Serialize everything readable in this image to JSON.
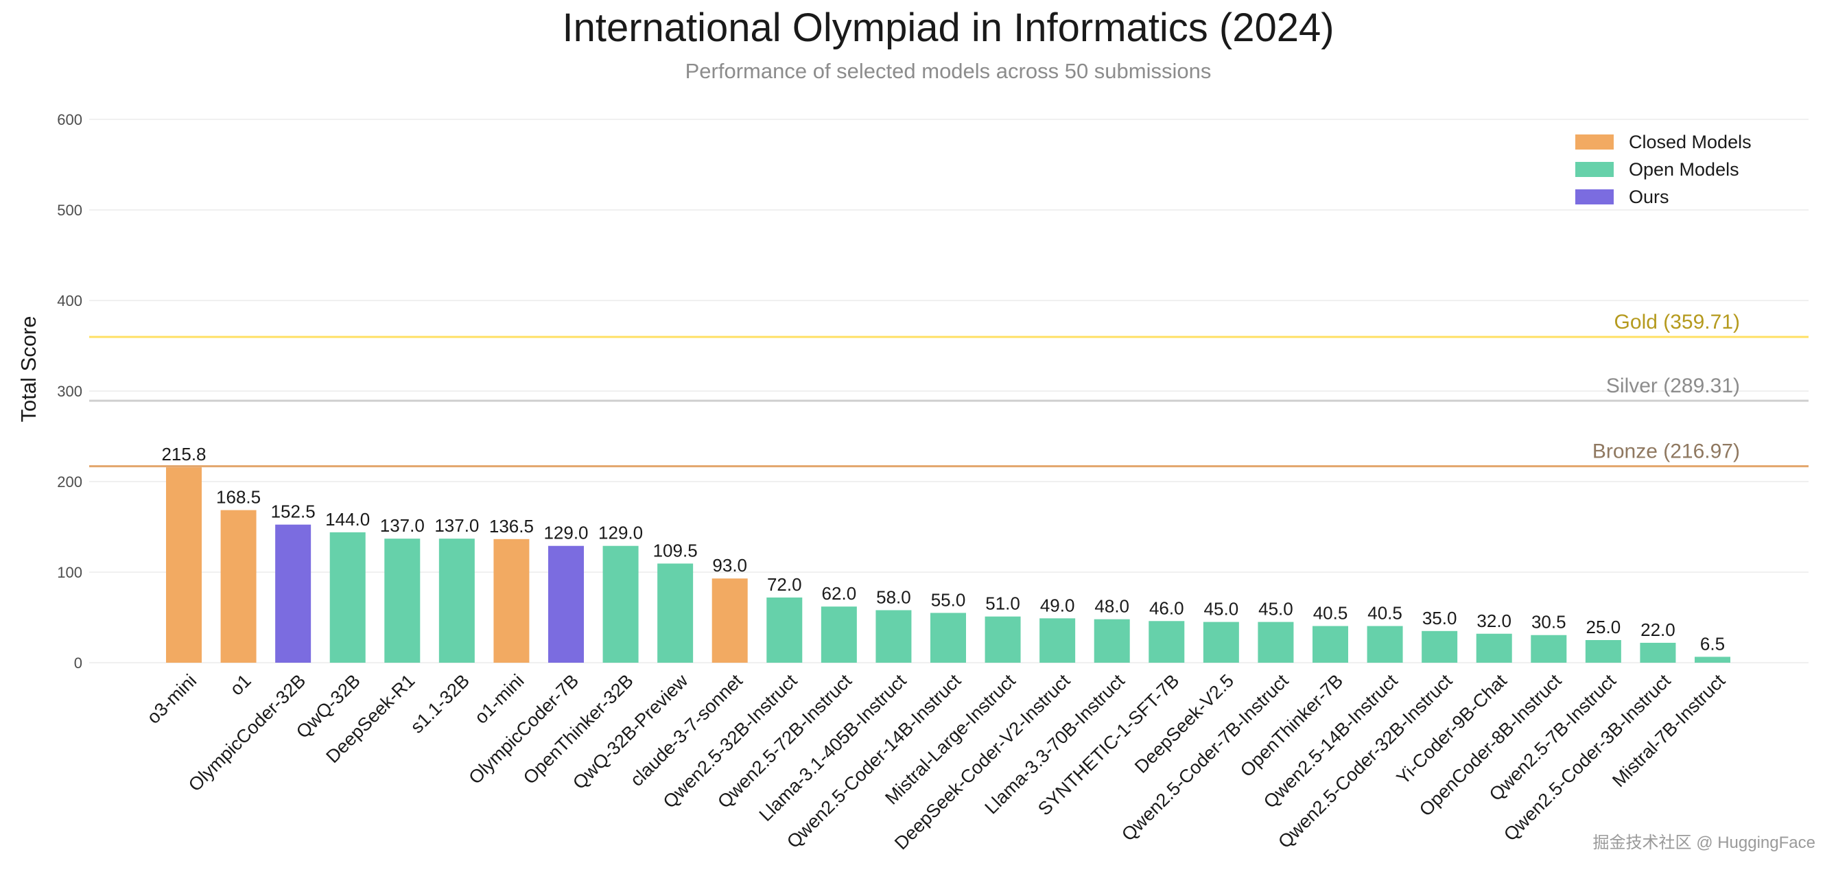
{
  "chart_data": {
    "type": "bar",
    "title": "International Olympiad in Informatics (2024)",
    "subtitle": "Performance of selected models across 50 submissions",
    "xlabel": "",
    "ylabel": "Total Score",
    "ylim": [
      0,
      600
    ],
    "yticks": [
      0,
      100,
      200,
      300,
      400,
      500,
      600
    ],
    "grid": true,
    "legend_position": "top-right",
    "legend": [
      {
        "name": "Closed Models",
        "group": "closed"
      },
      {
        "name": "Open Models",
        "group": "open"
      },
      {
        "name": "Ours",
        "group": "ours"
      }
    ],
    "colors": {
      "closed": "#F2AA62",
      "open": "#66D1AA",
      "ours": "#7B6CE0"
    },
    "categories": [
      "o3-mini",
      "o1",
      "OlympicCoder-32B",
      "QwQ-32B",
      "DeepSeek-R1",
      "s1.1-32B",
      "o1-mini",
      "OlympicCoder-7B",
      "OpenThinker-32B",
      "QwQ-32B-Preview",
      "claude-3-7-sonnet",
      "Qwen2.5-32B-Instruct",
      "Qwen2.5-72B-Instruct",
      "Llama-3.1-405B-Instruct",
      "Qwen2.5-Coder-14B-Instruct",
      "Mistral-Large-Instruct",
      "DeepSeek-Coder-V2-Instruct",
      "Llama-3.3-70B-Instruct",
      "SYNTHETIC-1-SFT-7B",
      "DeepSeek-V2.5",
      "Qwen2.5-Coder-7B-Instruct",
      "OpenThinker-7B",
      "Qwen2.5-14B-Instruct",
      "Qwen2.5-Coder-32B-Instruct",
      "Yi-Coder-9B-Chat",
      "OpenCoder-8B-Instruct",
      "Qwen2.5-7B-Instruct",
      "Qwen2.5-Coder-3B-Instruct",
      "Mistral-7B-Instruct"
    ],
    "values": [
      215.8,
      168.5,
      152.5,
      144.0,
      137.0,
      137.0,
      136.5,
      129.0,
      129.0,
      109.5,
      93.0,
      72.0,
      62.0,
      58.0,
      55.0,
      51.0,
      49.0,
      48.0,
      46.0,
      45.0,
      45.0,
      40.5,
      40.5,
      35.0,
      32.0,
      30.5,
      25.0,
      22.0,
      6.5
    ],
    "value_labels": [
      "215.8",
      "168.5",
      "152.5",
      "144.0",
      "137.0",
      "137.0",
      "136.5",
      "129.0",
      "129.0",
      "109.5",
      "93.0",
      "72.0",
      "62.0",
      "58.0",
      "55.0",
      "51.0",
      "49.0",
      "48.0",
      "46.0",
      "45.0",
      "45.0",
      "40.5",
      "40.5",
      "35.0",
      "32.0",
      "30.5",
      "25.0",
      "22.0",
      "6.5"
    ],
    "groups": [
      "closed",
      "closed",
      "ours",
      "open",
      "open",
      "open",
      "closed",
      "ours",
      "open",
      "open",
      "closed",
      "open",
      "open",
      "open",
      "open",
      "open",
      "open",
      "open",
      "open",
      "open",
      "open",
      "open",
      "open",
      "open",
      "open",
      "open",
      "open",
      "open",
      "open"
    ],
    "reference_lines": [
      {
        "label": "Gold (359.71)",
        "value": 359.71,
        "color": "#FFE066",
        "text_color": "#B59A1E"
      },
      {
        "label": "Silver (289.31)",
        "value": 289.31,
        "color": "#CFCFCF",
        "text_color": "#8C8C8C"
      },
      {
        "label": "Bronze (216.97)",
        "value": 216.97,
        "color": "#E2A66C",
        "text_color": "#8F7860"
      }
    ]
  },
  "watermark": "掘金技术社区 @ HuggingFace"
}
